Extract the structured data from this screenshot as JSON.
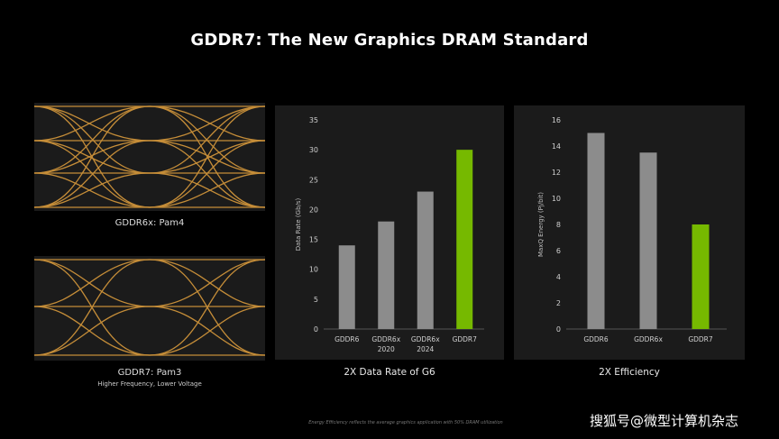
{
  "page": {
    "title": "GDDR7: The New Graphics DRAM Standard"
  },
  "eye_diagrams": [
    {
      "label": "GDDR6x: Pam4",
      "sub": ""
    },
    {
      "label": "GDDR7: Pam3",
      "sub": "Higher Frequency, Lower Voltage"
    }
  ],
  "footnote": "Energy Efficiency reflects the average graphics application with 50% DRAM utilization",
  "watermark": "搜狐号@微型计算机杂志",
  "colors": {
    "gray_bar": "#8c8c8c",
    "green_bar": "#76b900",
    "eye_trace": "#d89a3c",
    "panel_bg": "#1b1b1b"
  },
  "chart_data": [
    {
      "type": "bar",
      "categories": [
        "GDDR6",
        "GDDR6x 2020",
        "GDDR6x 2024",
        "GDDR7"
      ],
      "tick_labels": [
        [
          "GDDR6"
        ],
        [
          "GDDR6x",
          "2020"
        ],
        [
          "GDDR6x",
          "2024"
        ],
        [
          "GDDR7"
        ]
      ],
      "values": [
        14,
        18,
        23,
        30
      ],
      "highlight_index": 3,
      "ylabel": "Data Rate (Gb/s)",
      "ylim": [
        0,
        35
      ],
      "yticks": [
        0,
        5,
        10,
        15,
        20,
        25,
        30,
        35
      ],
      "caption": "2X Data Rate of G6",
      "grid": false
    },
    {
      "type": "bar",
      "categories": [
        "GDDR6",
        "GDDR6x",
        "GDDR7"
      ],
      "tick_labels": [
        [
          "GDDR6"
        ],
        [
          "GDDR6x"
        ],
        [
          "GDDR7"
        ]
      ],
      "values": [
        15,
        13.5,
        8
      ],
      "highlight_index": 2,
      "ylabel": "MaxQ Energy (Pj/bit)",
      "ylim": [
        0,
        16
      ],
      "yticks": [
        0,
        2,
        4,
        6,
        8,
        10,
        12,
        14,
        16
      ],
      "caption": "2X Efficiency",
      "grid": false
    }
  ]
}
